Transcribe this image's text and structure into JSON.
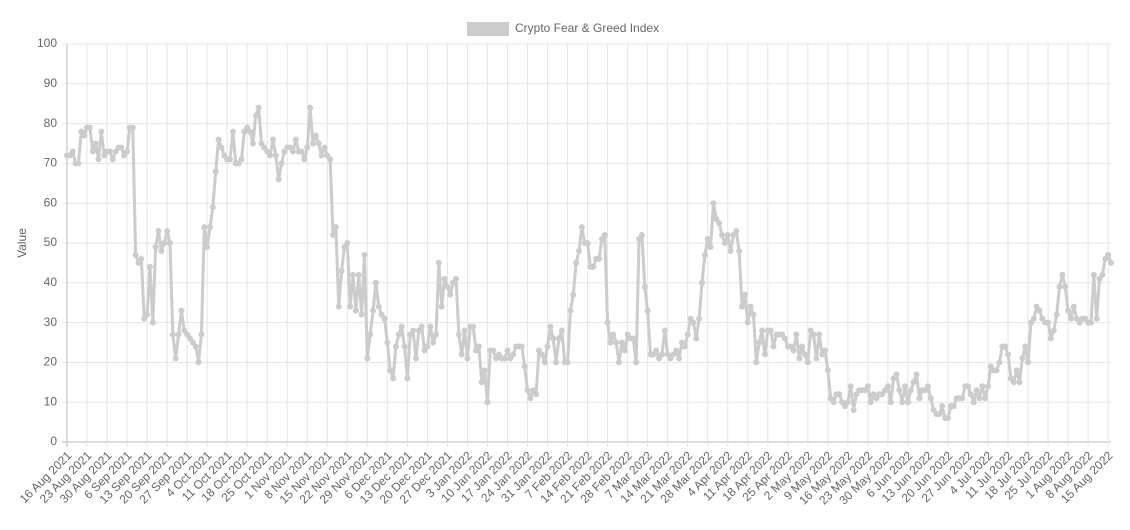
{
  "chart_data": {
    "type": "line",
    "legend_label": "Crypto Fear & Greed Index",
    "y_label": "Value",
    "color": "#cccccc",
    "grid": true,
    "ylim": [
      0,
      100
    ],
    "yticks": [
      0,
      10,
      20,
      30,
      40,
      50,
      60,
      70,
      80,
      90,
      100
    ],
    "categories": [
      "16 Aug 2021",
      null,
      null,
      null,
      null,
      null,
      null,
      "23 Aug 2021",
      null,
      null,
      null,
      null,
      null,
      null,
      "30 Aug 2021",
      null,
      null,
      null,
      null,
      null,
      null,
      "6 Sep 2021",
      null,
      null,
      null,
      null,
      null,
      null,
      "13 Sep 2021",
      null,
      null,
      null,
      null,
      null,
      null,
      "20 Sep 2021",
      null,
      null,
      null,
      null,
      null,
      null,
      "27 Sep 2021",
      null,
      null,
      null,
      null,
      null,
      null,
      "4 Oct 2021",
      null,
      null,
      null,
      null,
      null,
      null,
      "11 Oct 2021",
      null,
      null,
      null,
      null,
      null,
      null,
      "18 Oct 2021",
      null,
      null,
      null,
      null,
      null,
      null,
      "25 Oct 2021",
      null,
      null,
      null,
      null,
      null,
      null,
      "1 Nov 2021",
      null,
      null,
      null,
      null,
      null,
      null,
      "8 Nov 2021",
      null,
      null,
      null,
      null,
      null,
      null,
      "15 Nov 2021",
      null,
      null,
      null,
      null,
      null,
      null,
      "22 Nov 2021",
      null,
      null,
      null,
      null,
      null,
      null,
      "29 Nov 2021",
      null,
      null,
      null,
      null,
      null,
      null,
      "6 Dec 2021",
      null,
      null,
      null,
      null,
      null,
      null,
      "13 Dec 2021",
      null,
      null,
      null,
      null,
      null,
      null,
      "20 Dec 2021",
      null,
      null,
      null,
      null,
      null,
      null,
      "27 Dec 2021",
      null,
      null,
      null,
      null,
      null,
      null,
      "3 Jan 2022",
      null,
      null,
      null,
      null,
      null,
      null,
      "10 Jan 2022",
      null,
      null,
      null,
      null,
      null,
      null,
      "17 Jan 2022",
      null,
      null,
      null,
      null,
      null,
      null,
      "24 Jan 2022",
      null,
      null,
      null,
      null,
      null,
      null,
      "31 Jan 2022",
      null,
      null,
      null,
      null,
      null,
      null,
      "7 Feb 2022",
      null,
      null,
      null,
      null,
      null,
      null,
      "14 Feb 2022",
      null,
      null,
      null,
      null,
      null,
      null,
      "21 Feb 2022",
      null,
      null,
      null,
      null,
      null,
      null,
      "28 Feb 2022",
      null,
      null,
      null,
      null,
      null,
      null,
      "7 Mar 2022",
      null,
      null,
      null,
      null,
      null,
      null,
      "14 Mar 2022",
      null,
      null,
      null,
      null,
      null,
      null,
      "21 Mar 2022",
      null,
      null,
      null,
      null,
      null,
      null,
      "28 Mar 2022",
      null,
      null,
      null,
      null,
      null,
      null,
      "4 Apr 2022",
      null,
      null,
      null,
      null,
      null,
      null,
      "11 Apr 2022",
      null,
      null,
      null,
      null,
      null,
      null,
      "18 Apr 2022",
      null,
      null,
      null,
      null,
      null,
      null,
      "25 Apr 2022",
      null,
      null,
      null,
      null,
      null,
      null,
      "2 May 2022",
      null,
      null,
      null,
      null,
      null,
      null,
      "9 May 2022",
      null,
      null,
      null,
      null,
      null,
      null,
      "16 May 2022",
      null,
      null,
      null,
      null,
      null,
      null,
      "23 May 2022",
      null,
      null,
      null,
      null,
      null,
      null,
      "30 May 2022",
      null,
      null,
      null,
      null,
      null,
      null,
      "6 Jun 2022",
      null,
      null,
      null,
      null,
      null,
      null,
      "13 Jun 2022",
      null,
      null,
      null,
      null,
      null,
      null,
      "20 Jun 2022",
      null,
      null,
      null,
      null,
      null,
      null,
      "27 Jun 2022",
      null,
      null,
      null,
      null,
      null,
      null,
      "4 Jul 2022",
      null,
      null,
      null,
      null,
      null,
      null,
      "11 Jul 2022",
      null,
      null,
      null,
      null,
      null,
      null,
      "18 Jul 2022",
      null,
      null,
      null,
      null,
      null,
      null,
      "25 Jul 2022",
      null,
      null,
      null,
      null,
      null,
      null,
      "1 Aug 2022",
      null,
      null,
      null,
      null,
      null,
      null,
      "8 Aug 2022",
      null,
      null,
      null,
      null,
      null,
      null,
      "15 Aug 2022",
      null
    ],
    "values": [
      72,
      72,
      73,
      70,
      70,
      78,
      77,
      79,
      79,
      73,
      75,
      71,
      78,
      72,
      73,
      73,
      71,
      73,
      74,
      74,
      72,
      73,
      79,
      79,
      47,
      45,
      46,
      31,
      32,
      44,
      30,
      49,
      53,
      48,
      50,
      53,
      50,
      27,
      21,
      27,
      33,
      28,
      27,
      26,
      25,
      24,
      20,
      27,
      54,
      49,
      54,
      59,
      68,
      76,
      74,
      72,
      71,
      71,
      78,
      70,
      70,
      71,
      78,
      79,
      78,
      75,
      82,
      84,
      75,
      74,
      73,
      72,
      76,
      72,
      66,
      70,
      73,
      74,
      74,
      73,
      76,
      73,
      73,
      71,
      74,
      84,
      75,
      77,
      75,
      72,
      74,
      72,
      71,
      52,
      54,
      34,
      43,
      49,
      50,
      34,
      42,
      33,
      42,
      32,
      47,
      21,
      27,
      33,
      40,
      34,
      32,
      31,
      25,
      18,
      16,
      24,
      27,
      29,
      24,
      16,
      27,
      28,
      21,
      28,
      29,
      23,
      24,
      29,
      25,
      27,
      45,
      34,
      41,
      39,
      37,
      40,
      41,
      27,
      22,
      28,
      21,
      29,
      29,
      23,
      24,
      15,
      18,
      10,
      23,
      23,
      21,
      22,
      21,
      21,
      23,
      21,
      22,
      24,
      24,
      24,
      19,
      13,
      11,
      13,
      12,
      23,
      22,
      20,
      24,
      29,
      26,
      20,
      26,
      28,
      20,
      20,
      33,
      37,
      45,
      48,
      54,
      50,
      50,
      44,
      44,
      46,
      46,
      51,
      52,
      30,
      25,
      27,
      25,
      20,
      25,
      23,
      27,
      26,
      26,
      20,
      51,
      52,
      39,
      33,
      22,
      22,
      23,
      21,
      22,
      28,
      22,
      21,
      22,
      23,
      21,
      25,
      24,
      27,
      31,
      30,
      26,
      31,
      40,
      47,
      51,
      49,
      60,
      56,
      55,
      52,
      50,
      52,
      48,
      52,
      53,
      48,
      34,
      37,
      30,
      34,
      32,
      20,
      25,
      28,
      22,
      28,
      28,
      24,
      27,
      27,
      27,
      26,
      24,
      24,
      23,
      27,
      21,
      24,
      22,
      20,
      28,
      27,
      21,
      27,
      22,
      23,
      18,
      11,
      10,
      12,
      12,
      10,
      9,
      10,
      14,
      8,
      12,
      13,
      13,
      13,
      14,
      10,
      12,
      11,
      12,
      12,
      13,
      14,
      10,
      16,
      17,
      13,
      10,
      14,
      10,
      13,
      15,
      17,
      11,
      13,
      13,
      14,
      11,
      8,
      7,
      7,
      9,
      6,
      6,
      9,
      9,
      11,
      11,
      11,
      14,
      14,
      12,
      10,
      13,
      11,
      14,
      11,
      14,
      19,
      18,
      18,
      20,
      24,
      24,
      22,
      16,
      15,
      18,
      15,
      21,
      24,
      20,
      30,
      31,
      34,
      33,
      31,
      30,
      30,
      26,
      28,
      32,
      39,
      42,
      39,
      33,
      31,
      34,
      31,
      30,
      31,
      31,
      30,
      30,
      42,
      31,
      41,
      42,
      46,
      47,
      45
    ]
  }
}
